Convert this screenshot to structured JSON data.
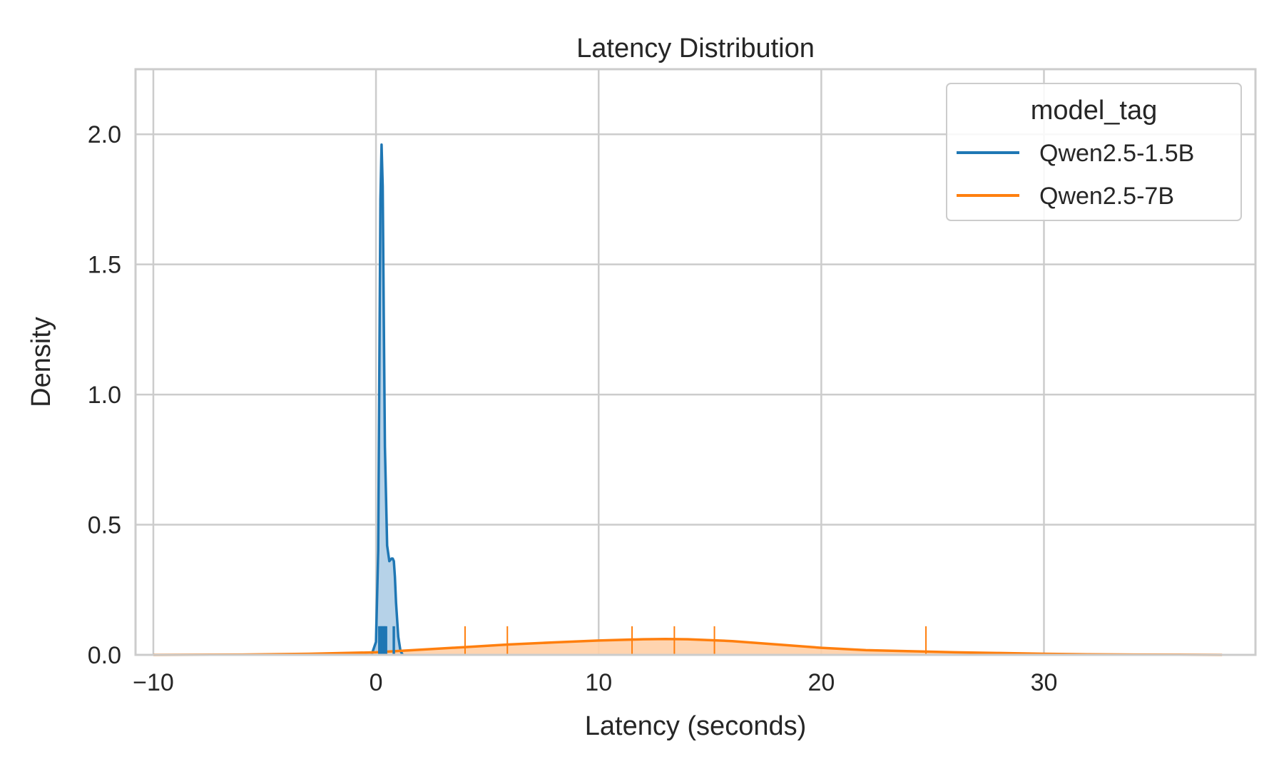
{
  "chart_data": {
    "type": "area",
    "title": "Latency Distribution",
    "xlabel": "Latency (seconds)",
    "ylabel": "Density",
    "xlim": [
      -10.8,
      39.5
    ],
    "ylim": [
      0,
      2.25
    ],
    "xticks": [
      -10,
      0,
      10,
      20,
      30
    ],
    "xtick_labels": [
      "−10",
      "0",
      "10",
      "20",
      "30"
    ],
    "yticks": [
      0.0,
      0.5,
      1.0,
      1.5,
      2.0
    ],
    "ytick_labels": [
      "0.0",
      "0.5",
      "1.0",
      "1.5",
      "2.0"
    ],
    "grid": true,
    "legend": {
      "title": "model_tag",
      "placement": "top-right"
    },
    "series": [
      {
        "name": "Qwen2.5-1.5B",
        "color": "#1f77b4",
        "fill_color": "#aecde5",
        "x": [
          -0.2,
          0.0,
          0.1,
          0.15,
          0.2,
          0.25,
          0.3,
          0.35,
          0.4,
          0.5,
          0.6,
          0.7,
          0.75,
          0.8,
          0.85,
          0.9,
          1.0,
          1.1,
          1.2
        ],
        "y": [
          0.0,
          0.05,
          0.4,
          1.1,
          1.75,
          1.96,
          1.8,
          1.3,
          0.8,
          0.42,
          0.36,
          0.37,
          0.37,
          0.36,
          0.3,
          0.2,
          0.07,
          0.015,
          0.0
        ],
        "rug": [
          0.15,
          0.2,
          0.25,
          0.3,
          0.35,
          0.4,
          0.45,
          0.8
        ]
      },
      {
        "name": "Qwen2.5-7B",
        "color": "#ff7f0e",
        "fill_color": "#ffcfa6",
        "x": [
          -10.0,
          -6.0,
          -3.0,
          0.0,
          2.0,
          4.0,
          6.0,
          8.0,
          10.0,
          12.0,
          13.0,
          14.0,
          16.0,
          18.0,
          20.0,
          22.0,
          24.0,
          26.0,
          28.0,
          30.0,
          32.0,
          34.0,
          36.0,
          38.0
        ],
        "y": [
          0.0,
          0.001,
          0.004,
          0.01,
          0.02,
          0.03,
          0.04,
          0.048,
          0.055,
          0.06,
          0.061,
          0.06,
          0.053,
          0.04,
          0.027,
          0.018,
          0.014,
          0.01,
          0.007,
          0.004,
          0.002,
          0.001,
          0.0005,
          0.0
        ],
        "rug": [
          4.0,
          5.9,
          11.5,
          13.4,
          15.2,
          24.7
        ]
      }
    ]
  }
}
